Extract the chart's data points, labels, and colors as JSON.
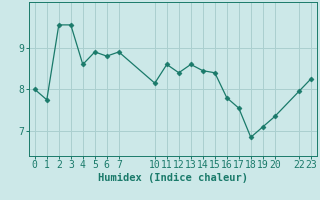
{
  "x_values": [
    0,
    1,
    2,
    3,
    4,
    5,
    6,
    7,
    10,
    11,
    12,
    13,
    14,
    15,
    16,
    17,
    18,
    19,
    20,
    22,
    23
  ],
  "y_values": [
    8.0,
    7.75,
    9.55,
    9.55,
    8.6,
    8.9,
    8.8,
    8.9,
    8.15,
    8.6,
    8.4,
    8.6,
    8.45,
    8.4,
    7.8,
    7.55,
    6.85,
    7.1,
    7.35,
    7.95,
    8.25
  ],
  "line_color": "#1a7a6a",
  "marker": "D",
  "marker_size": 2.5,
  "bg_color": "#cce8e8",
  "grid_color": "#aacfcf",
  "xlabel": "Humidex (Indice chaleur)",
  "xlabel_fontsize": 7.5,
  "xticks": [
    0,
    1,
    2,
    3,
    4,
    5,
    6,
    7,
    10,
    11,
    12,
    13,
    14,
    15,
    16,
    17,
    18,
    19,
    20,
    22,
    23
  ],
  "xtick_labels": [
    "0",
    "1",
    "2",
    "3",
    "4",
    "5",
    "6",
    "7",
    "10",
    "11",
    "12",
    "13",
    "14",
    "15",
    "16",
    "17",
    "18",
    "19",
    "20",
    "22",
    "23"
  ],
  "yticks": [
    7,
    8,
    9
  ],
  "ylim": [
    6.4,
    10.1
  ],
  "xlim": [
    -0.5,
    23.5
  ],
  "tick_fontsize": 7.0,
  "axis_color": "#1a7a6a",
  "linewidth": 0.9
}
